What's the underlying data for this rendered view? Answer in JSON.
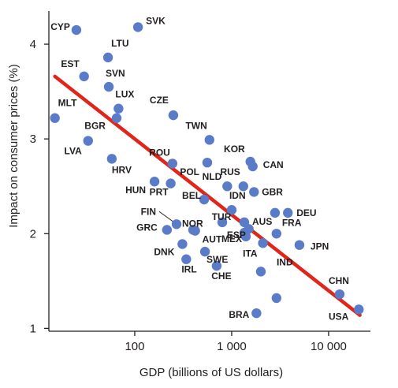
{
  "chart_data": {
    "type": "scatter",
    "title": "",
    "xlabel": "GDP (billions of US dollars)",
    "ylabel": "Impact on consumer prices (%)",
    "x_scale": "log",
    "xlim": [
      13,
      27000
    ],
    "ylim": [
      0.97,
      4.35
    ],
    "x_ticks": [
      100,
      1000,
      10000
    ],
    "x_tick_labels": [
      "100",
      "1 000",
      "10 000"
    ],
    "y_ticks": [
      1,
      2,
      3,
      4
    ],
    "y_tick_labels": [
      "1",
      "2",
      "3",
      "4"
    ],
    "grid": false,
    "legend": "none",
    "colors": {
      "point": "#5a7cc8",
      "fit_line": "#e0251b",
      "text": "#231f20"
    },
    "points": [
      {
        "label": "SVK",
        "x": 108,
        "y": 4.18
      },
      {
        "label": "CYP",
        "x": 25,
        "y": 4.15
      },
      {
        "label": "LTU",
        "x": 53,
        "y": 3.86
      },
      {
        "label": "EST",
        "x": 30,
        "y": 3.66
      },
      {
        "label": "SVN",
        "x": 54,
        "y": 3.55
      },
      {
        "label": "LUX",
        "x": 68,
        "y": 3.32
      },
      {
        "label": "MLT",
        "x": 15,
        "y": 3.22
      },
      {
        "label": "BGR",
        "x": 65,
        "y": 3.22
      },
      {
        "label": "CZE",
        "x": 250,
        "y": 3.25
      },
      {
        "label": "LVA",
        "x": 33,
        "y": 2.98
      },
      {
        "label": "TWN",
        "x": 590,
        "y": 2.99
      },
      {
        "label": "HRV",
        "x": 58,
        "y": 2.79
      },
      {
        "label": "ROU",
        "x": 245,
        "y": 2.74
      },
      {
        "label": "POL",
        "x": 560,
        "y": 2.75
      },
      {
        "label": "KOR",
        "x": 1560,
        "y": 2.76
      },
      {
        "label": "CAN",
        "x": 1650,
        "y": 2.71
      },
      {
        "label": "HUN",
        "x": 160,
        "y": 2.55
      },
      {
        "label": "PRT",
        "x": 235,
        "y": 2.53
      },
      {
        "label": "NLD",
        "x": 900,
        "y": 2.5
      },
      {
        "label": "RUS",
        "x": 1320,
        "y": 2.5
      },
      {
        "label": "GBR",
        "x": 1700,
        "y": 2.44
      },
      {
        "label": "BEL",
        "x": 520,
        "y": 2.36
      },
      {
        "label": "IDN",
        "x": 1000,
        "y": 2.25
      },
      {
        "label": "DEU",
        "x": 3800,
        "y": 2.22
      },
      {
        "label": "FIN",
        "x": 270,
        "y": 2.1
      },
      {
        "label": "TUR",
        "x": 800,
        "y": 2.12
      },
      {
        "label": "AUS",
        "x": 1350,
        "y": 2.12
      },
      {
        "label": "NOR",
        "x": 400,
        "y": 2.04
      },
      {
        "label": "GRC",
        "x": 215,
        "y": 2.04
      },
      {
        "label": "FRA",
        "x": 2900,
        "y": 2.0
      },
      {
        "label": "AUT",
        "x": 420,
        "y": 2.03
      },
      {
        "label": "MEX",
        "x": 1350,
        "y": 2.01
      },
      {
        "label": "ESP",
        "x": 1400,
        "y": 1.97
      },
      {
        "label": "DNK",
        "x": 310,
        "y": 1.89
      },
      {
        "label": "JPN",
        "x": 5000,
        "y": 1.88
      },
      {
        "label": "SWE",
        "x": 530,
        "y": 1.81
      },
      {
        "label": "IRL",
        "x": 340,
        "y": 1.73
      },
      {
        "label": "ITA",
        "x": 2100,
        "y": 1.9
      },
      {
        "label": "CHE",
        "x": 700,
        "y": 1.66
      },
      {
        "label": "IND",
        "x": 2000,
        "y": 1.6
      },
      {
        "label": "CHN",
        "x": 13000,
        "y": 1.36
      },
      {
        "label": "BRA",
        "x": 1800,
        "y": 1.16
      },
      {
        "label": "USA",
        "x": 20500,
        "y": 1.2
      },
      {
        "label": "",
        "x": 2900,
        "y": 1.32
      },
      {
        "label": "",
        "x": 2800,
        "y": 2.22
      },
      {
        "label": "",
        "x": 1500,
        "y": 2.05
      }
    ],
    "fit_line": {
      "x": [
        15,
        21000
      ],
      "y": [
        3.66,
        1.14
      ]
    }
  }
}
